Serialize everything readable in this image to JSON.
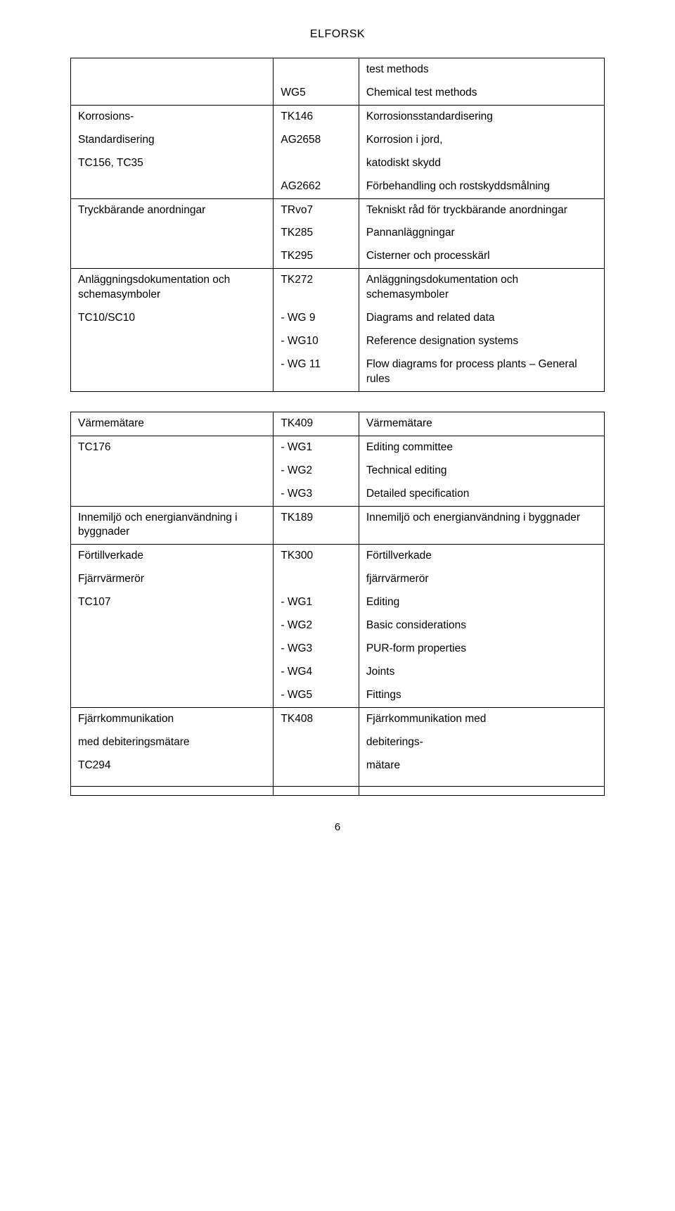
{
  "header": "ELFORSK",
  "page_number": "6",
  "table1": {
    "rows": [
      {
        "left": "",
        "mid": "",
        "right": "test methods",
        "hr": false
      },
      {
        "left": "",
        "mid": "WG5",
        "right": "Chemical test methods",
        "hr": true
      },
      {
        "left": "Korrosions-",
        "mid": "TK146",
        "right": "Korrosionsstandardisering",
        "hr": false
      },
      {
        "left": "Standardisering",
        "mid": "AG2658",
        "right": " Korrosion i jord,",
        "hr": false
      },
      {
        "left": "TC156, TC35",
        "mid": "",
        "right": "katodiskt skydd",
        "hr": false
      },
      {
        "left": "",
        "mid": "AG2662",
        "right": "Förbehandling och rostskyddsmålning",
        "hr": true
      },
      {
        "left": "Tryckbärande anordningar",
        "mid": "TRvo7",
        "right": "Tekniskt råd för tryckbärande anordningar",
        "hr": false
      },
      {
        "left": "",
        "mid": "TK285",
        "right": "Pannanläggningar",
        "hr": false
      },
      {
        "left": "",
        "mid": "TK295",
        "right": "Cisterner och processkärl",
        "hr": true
      },
      {
        "left": "Anläggningsdokumentation och schemasymboler",
        "mid": "TK272",
        "right": "Anläggningsdokumentation och schemasymboler",
        "hr": false
      },
      {
        "left": "TC10/SC10",
        "mid": "- WG 9",
        "right": "Diagrams and related data",
        "hr": false
      },
      {
        "left": "",
        "mid": "- WG10",
        "right": "Reference designation systems",
        "hr": false
      },
      {
        "left": "",
        "mid": "- WG 11",
        "right": "Flow diagrams for process plants – General rules",
        "hr": false
      }
    ]
  },
  "table2": {
    "rows": [
      {
        "left": "Värmemätare",
        "mid": "TK409",
        "right": "Värmemätare",
        "hr": true
      },
      {
        "left": "TC176",
        "mid": "- WG1",
        "right": "Editing committee",
        "hr": false
      },
      {
        "left": "",
        "mid": "- WG2",
        "right": "Technical editing",
        "hr": false
      },
      {
        "left": "",
        "mid": "- WG3",
        "right": "Detailed specification",
        "hr": true
      },
      {
        "left": "Innemiljö och energianvändning i byggnader",
        "mid": "TK189",
        "right": "Innemiljö och energianvändning i byggnader",
        "hr": true
      },
      {
        "left": "Förtillverkade",
        "mid": "TK300",
        "right": "Förtillverkade",
        "hr": false
      },
      {
        "left": "Fjärrvärmerör",
        "mid": "",
        "right": "fjärrvärmerör",
        "hr": false
      },
      {
        "left": "TC107",
        "mid": "- WG1",
        "right": "Editing",
        "hr": false
      },
      {
        "left": "",
        "mid": "- WG2",
        "right": "Basic considerations",
        "hr": false
      },
      {
        "left": "",
        "mid": "- WG3",
        "right": "PUR-form properties",
        "hr": false
      },
      {
        "left": "",
        "mid": "- WG4",
        "right": "Joints",
        "hr": false
      },
      {
        "left": "",
        "mid": "- WG5",
        "right": "Fittings",
        "hr": true
      },
      {
        "left": "Fjärrkommunikation",
        "mid": "TK408",
        "right": "Fjärrkommunikation med",
        "hr": false
      },
      {
        "left": "med debiteringsmätare",
        "mid": "",
        "right": "debiterings-",
        "hr": false
      },
      {
        "left": "TC294",
        "mid": "",
        "right": "mätare",
        "hr": false
      },
      {
        "left": "",
        "mid": "",
        "right": "",
        "hr": true
      },
      {
        "left": "",
        "mid": "",
        "right": "",
        "hr": false
      }
    ]
  }
}
